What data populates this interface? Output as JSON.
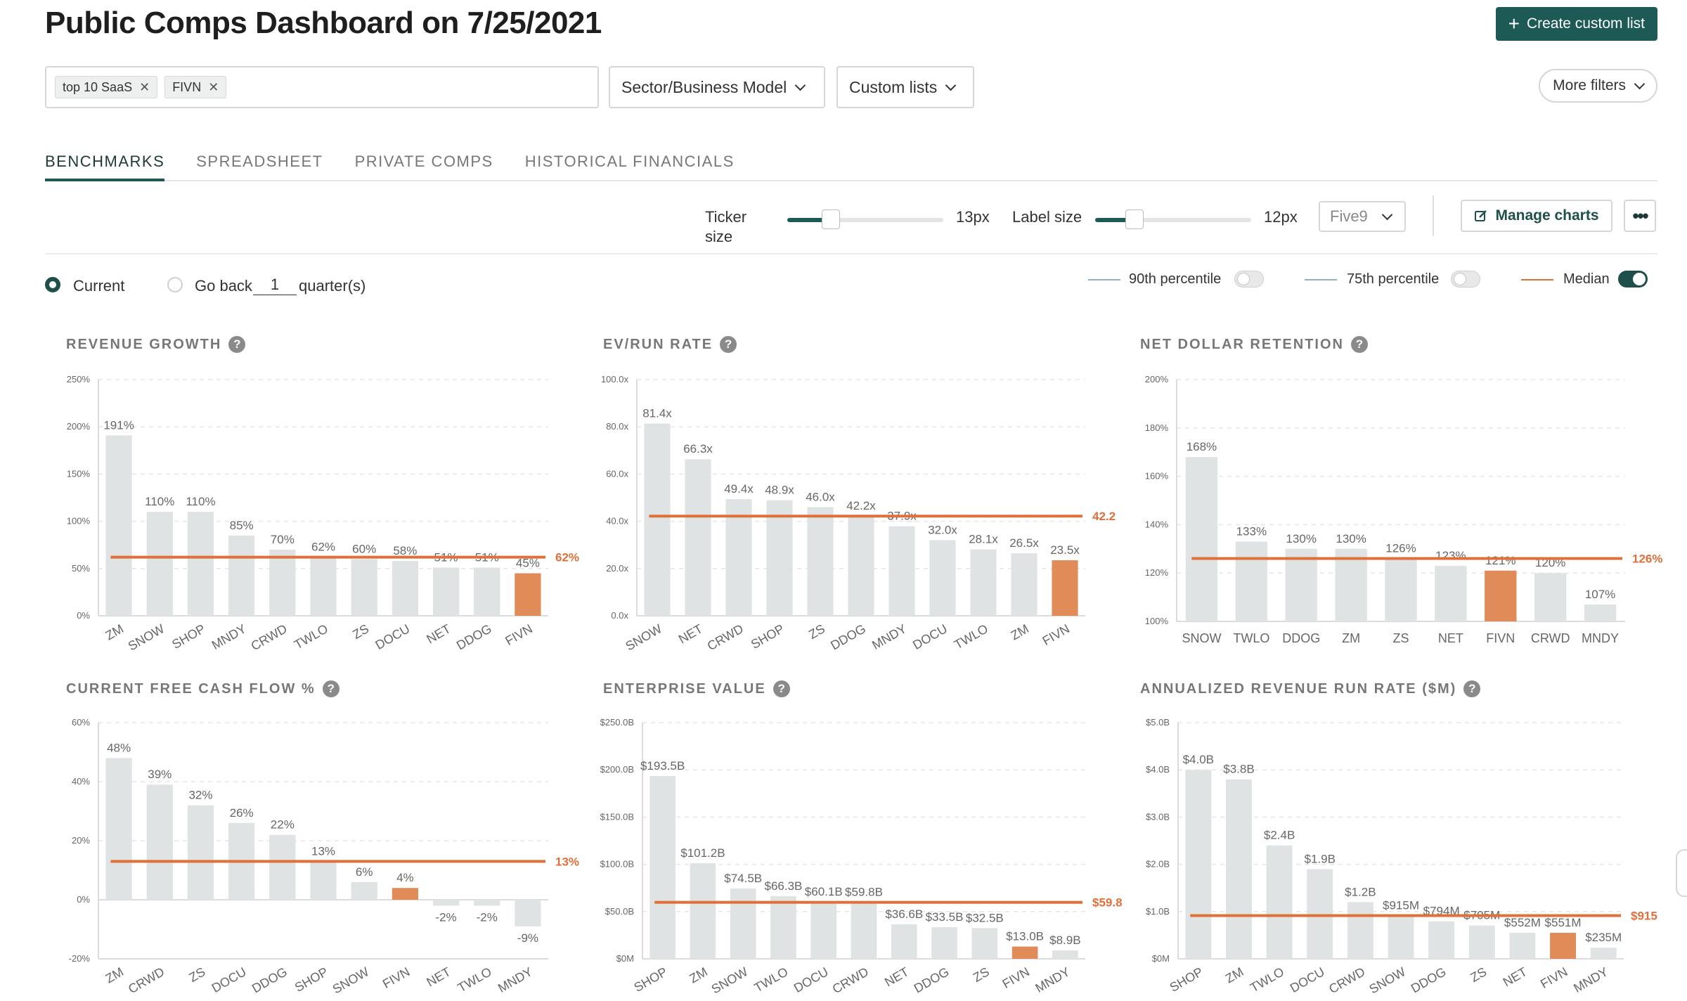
{
  "header": {
    "title": "Public Comps Dashboard on 7/25/2021",
    "create_button": "Create custom list"
  },
  "filters": {
    "chips": [
      "top 10 SaaS",
      "FIVN"
    ],
    "sector_dropdown": "Sector/Business Model",
    "custom_lists_dropdown": "Custom lists",
    "more_filters": "More filters"
  },
  "tabs": [
    {
      "label": "BENCHMARKS",
      "active": true
    },
    {
      "label": "SPREADSHEET",
      "active": false
    },
    {
      "label": "PRIVATE COMPS",
      "active": false
    },
    {
      "label": "HISTORICAL FINANCIALS",
      "active": false
    }
  ],
  "controls": {
    "ticker_size_label_line1": "Ticker",
    "ticker_size_label_line2": "size",
    "ticker_size_value": "13px",
    "ticker_size_fraction": 0.28,
    "label_size_label": "Label size",
    "label_size_value": "12px",
    "label_size_fraction": 0.25,
    "company_select": "Five9",
    "manage_charts": "Manage charts",
    "more_menu": "•••"
  },
  "period": {
    "current_label": "Current",
    "go_back_label": "Go back",
    "quarters_value": "1",
    "quarters_suffix": "quarter(s)",
    "selected": "current"
  },
  "legend": {
    "p90_label": "90th percentile",
    "p90_on": false,
    "p75_label": "75th percentile",
    "p75_on": false,
    "median_label": "Median",
    "median_on": true
  },
  "colors": {
    "accent": "#1e5a55",
    "bar": "#dfe3e3",
    "highlight": "#e08b58",
    "median": "#e0703a",
    "p90": "#8fb3c4",
    "p75": "#8fb3c4"
  },
  "chart_data": [
    {
      "title": "REVENUE GROWTH",
      "type": "bar",
      "categories": [
        "ZM",
        "SNOW",
        "SHOP",
        "MNDY",
        "CRWD",
        "TWLO",
        "ZS",
        "DOCU",
        "NET",
        "DDOG",
        "FIVN"
      ],
      "values": [
        191,
        110,
        110,
        85,
        70,
        62,
        60,
        58,
        51,
        51,
        45
      ],
      "labels": [
        "191%",
        "110%",
        "110%",
        "85%",
        "70%",
        "62%",
        "60%",
        "58%",
        "51%",
        "51%",
        "45%"
      ],
      "highlight": "FIVN",
      "ylim": [
        0,
        250
      ],
      "yticks": [
        0,
        50,
        100,
        150,
        200,
        250
      ],
      "ytick_labels": [
        "0%",
        "50%",
        "100%",
        "150%",
        "200%",
        "250%"
      ],
      "median": 62,
      "median_label": "62%",
      "rotated_ticks": true
    },
    {
      "title": "EV/RUN RATE",
      "type": "bar",
      "categories": [
        "SNOW",
        "NET",
        "CRWD",
        "SHOP",
        "ZS",
        "DDOG",
        "MNDY",
        "DOCU",
        "TWLO",
        "ZM",
        "FIVN"
      ],
      "values": [
        81.4,
        66.3,
        49.4,
        48.9,
        46.0,
        42.2,
        37.9,
        32.0,
        28.1,
        26.5,
        23.5
      ],
      "labels": [
        "81.4x",
        "66.3x",
        "49.4x",
        "48.9x",
        "46.0x",
        "42.2x",
        "37.9x",
        "32.0x",
        "28.1x",
        "26.5x",
        "23.5x"
      ],
      "highlight": "FIVN",
      "ylim": [
        0,
        100
      ],
      "yticks": [
        0,
        20,
        40,
        60,
        80,
        100
      ],
      "ytick_labels": [
        "0.0x",
        "20.0x",
        "40.0x",
        "60.0x",
        "80.0x",
        "100.0x"
      ],
      "median": 42.2,
      "median_label": "42.2",
      "rotated_ticks": true
    },
    {
      "title": "NET DOLLAR RETENTION",
      "type": "bar",
      "categories": [
        "SNOW",
        "TWLO",
        "DDOG",
        "ZM",
        "ZS",
        "NET",
        "FIVN",
        "CRWD",
        "MNDY"
      ],
      "values": [
        168,
        133,
        130,
        130,
        126,
        123,
        121,
        120,
        107
      ],
      "labels": [
        "168%",
        "133%",
        "130%",
        "130%",
        "126%",
        "123%",
        "121%",
        "120%",
        "107%"
      ],
      "highlight": "FIVN",
      "ylim": [
        100,
        200
      ],
      "yticks": [
        100,
        120,
        140,
        160,
        180,
        200
      ],
      "ytick_labels": [
        "100%",
        "120%",
        "140%",
        "160%",
        "180%",
        "200%"
      ],
      "median": 126,
      "median_label": "126%",
      "rotated_ticks": false
    },
    {
      "title": "CURRENT FREE CASH FLOW %",
      "type": "bar",
      "categories": [
        "ZM",
        "CRWD",
        "ZS",
        "DOCU",
        "DDOG",
        "SHOP",
        "SNOW",
        "FIVN",
        "NET",
        "TWLO",
        "MNDY"
      ],
      "values": [
        48,
        39,
        32,
        26,
        22,
        13,
        6,
        4,
        -2,
        -2,
        -9
      ],
      "labels": [
        "48%",
        "39%",
        "32%",
        "26%",
        "22%",
        "13%",
        "6%",
        "4%",
        "-2%",
        "-2%",
        "-9%"
      ],
      "highlight": "FIVN",
      "ylim": [
        -20,
        60
      ],
      "yticks": [
        -20,
        0,
        20,
        40,
        60
      ],
      "ytick_labels": [
        "-20%",
        "0%",
        "20%",
        "40%",
        "60%"
      ],
      "median": 13,
      "median_label": "13%",
      "rotated_ticks": true
    },
    {
      "title": "ENTERPRISE VALUE",
      "type": "bar",
      "categories": [
        "SHOP",
        "ZM",
        "SNOW",
        "TWLO",
        "DOCU",
        "CRWD",
        "NET",
        "DDOG",
        "ZS",
        "FIVN",
        "MNDY"
      ],
      "values": [
        193.5,
        101.2,
        74.5,
        66.3,
        60.1,
        59.8,
        36.6,
        33.5,
        32.5,
        13.0,
        8.9
      ],
      "labels": [
        "$193.5B",
        "$101.2B",
        "$74.5B",
        "$66.3B",
        "$60.1B",
        "$59.8B",
        "$36.6B",
        "$33.5B",
        "$32.5B",
        "$13.0B",
        "$8.9B"
      ],
      "highlight": "FIVN",
      "ylim": [
        0,
        250
      ],
      "yticks": [
        0,
        50,
        100,
        150,
        200,
        250
      ],
      "ytick_labels": [
        "$0M",
        "$50.0B",
        "$100.0B",
        "$150.0B",
        "$200.0B",
        "$250.0B"
      ],
      "median": 59.8,
      "median_label": "$59.8",
      "rotated_ticks": true
    },
    {
      "title": "ANNUALIZED REVENUE RUN RATE ($M)",
      "type": "bar",
      "categories": [
        "SHOP",
        "ZM",
        "TWLO",
        "DOCU",
        "CRWD",
        "SNOW",
        "DDOG",
        "ZS",
        "NET",
        "FIVN",
        "MNDY"
      ],
      "values": [
        4.0,
        3.8,
        2.4,
        1.9,
        1.2,
        0.915,
        0.794,
        0.705,
        0.552,
        0.551,
        0.235
      ],
      "labels": [
        "$4.0B",
        "$3.8B",
        "$2.4B",
        "$1.9B",
        "$1.2B",
        "$915M",
        "$794M",
        "$705M",
        "$552M",
        "$551M",
        "$235M"
      ],
      "highlight": "FIVN",
      "ylim": [
        0,
        5
      ],
      "yticks": [
        0,
        1,
        2,
        3,
        4,
        5
      ],
      "ytick_labels": [
        "$0M",
        "$1.0B",
        "$2.0B",
        "$3.0B",
        "$4.0B",
        "$5.0B"
      ],
      "median": 0.915,
      "median_label": "$915",
      "rotated_ticks": true
    }
  ]
}
